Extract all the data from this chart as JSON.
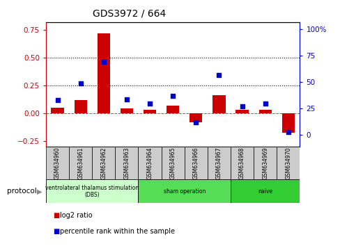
{
  "title": "GDS3972 / 664",
  "samples": [
    "GSM634960",
    "GSM634961",
    "GSM634962",
    "GSM634963",
    "GSM634964",
    "GSM634965",
    "GSM634966",
    "GSM634967",
    "GSM634968",
    "GSM634969",
    "GSM634970"
  ],
  "log2_ratio": [
    0.05,
    0.12,
    0.72,
    0.04,
    0.03,
    0.07,
    -0.08,
    0.16,
    0.03,
    0.03,
    -0.18
  ],
  "percentile_rank": [
    33,
    49,
    69,
    34,
    30,
    37,
    12,
    57,
    27,
    30,
    2.5
  ],
  "groups": [
    {
      "label": "ventrolateral thalamus stimulation\n(DBS)",
      "start": 0,
      "end": 3,
      "color": "#ccffcc"
    },
    {
      "label": "sham operation",
      "start": 4,
      "end": 7,
      "color": "#55dd55"
    },
    {
      "label": "naive",
      "start": 8,
      "end": 10,
      "color": "#33cc33"
    }
  ],
  "bar_color": "#cc0000",
  "dot_color": "#0000cc",
  "left_axis_color": "#cc0000",
  "right_axis_color": "#0000cc",
  "ylim_left": [
    -0.3,
    0.82
  ],
  "ylim_right": [
    -10.9,
    107
  ],
  "yticks_left": [
    -0.25,
    0.0,
    0.25,
    0.5,
    0.75
  ],
  "yticks_right": [
    0,
    25,
    50,
    75,
    100
  ],
  "hlines": [
    0.25,
    0.5
  ],
  "legend_items": [
    "log2 ratio",
    "percentile rank within the sample"
  ],
  "protocol_label": "protocol",
  "sample_box_color": "#cccccc",
  "title_fontsize": 10
}
